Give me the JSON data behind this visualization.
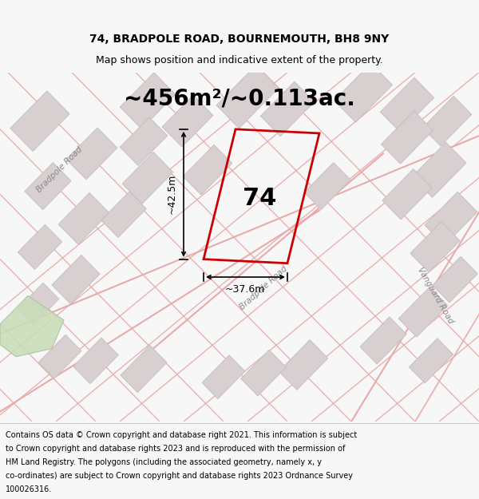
{
  "title_line1": "74, BRADPOLE ROAD, BOURNEMOUTH, BH8 9NY",
  "title_line2": "Map shows position and indicative extent of the property.",
  "area_text": "~456m²/~0.113ac.",
  "label_74": "74",
  "dim_height": "~42.5m",
  "dim_width": "~37.6m",
  "footer_lines": [
    "Contains OS data © Crown copyright and database right 2021. This information is subject",
    "to Crown copyright and database rights 2023 and is reproduced with the permission of",
    "HM Land Registry. The polygons (including the associated geometry, namely x, y",
    "co-ordinates) are subject to Crown copyright and database rights 2023 Ordnance Survey",
    "100026316."
  ],
  "bg_color": "#f7f7f7",
  "map_bg": "#efefef",
  "plot_color": "#cc0000",
  "road_color": "#e8aaaa",
  "building_fill": "#d8d0d0",
  "building_edge": "#c8c0c0",
  "footer_bg": "#ffffff",
  "road_label_color": "#888888",
  "title_fontsize": 10,
  "subtitle_fontsize": 9,
  "area_fontsize": 20,
  "label_fontsize": 22,
  "dim_fontsize": 9,
  "footer_fontsize": 7
}
